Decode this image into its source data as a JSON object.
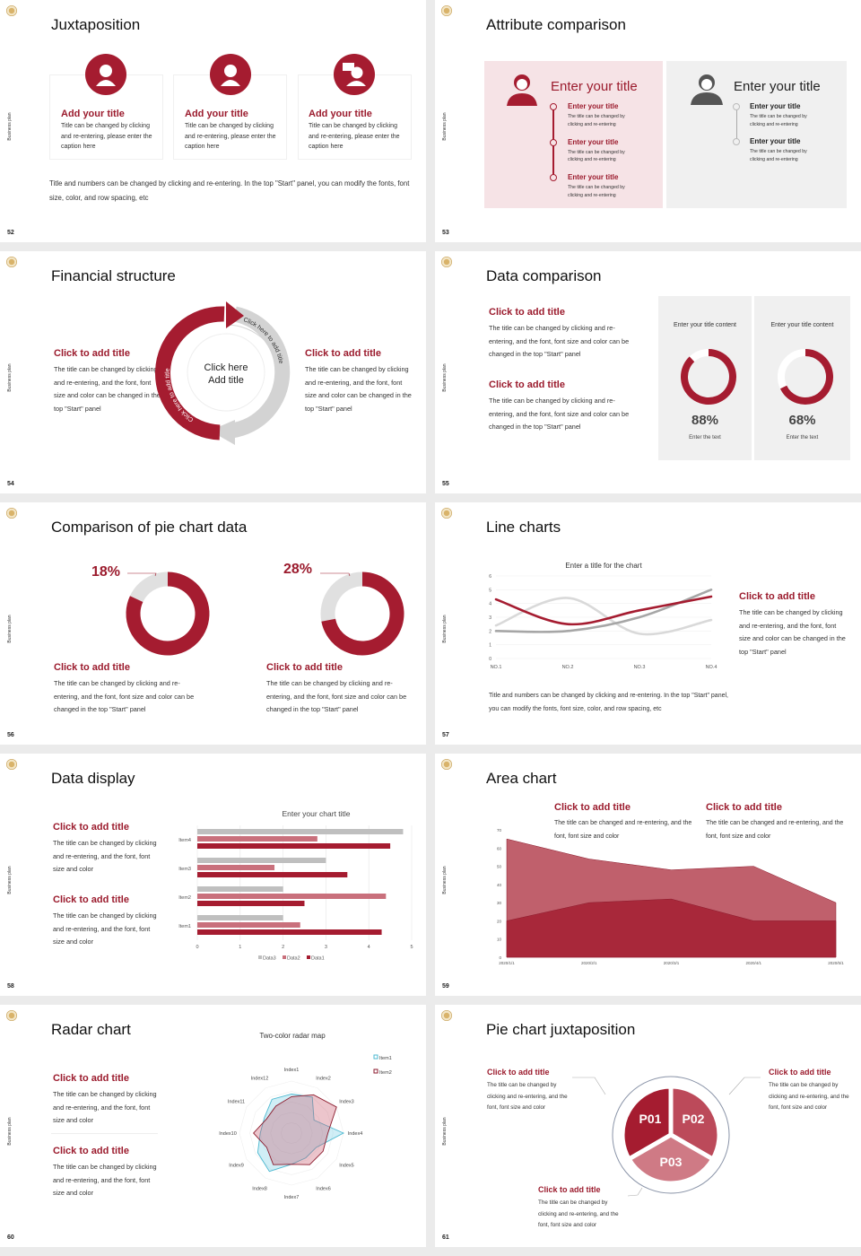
{
  "side_label": "Business plan",
  "colors": {
    "accent": "#a51c30",
    "mid": "#c9707c",
    "light": "#e0e0e0",
    "gray": "#bfbfbf"
  },
  "s52": {
    "page": "52",
    "title": "Juxtaposition",
    "cards": [
      {
        "icon": "headset-agent-icon",
        "title": "Add your title",
        "text": "Title can be changed by clicking and re-entering, please enter the caption here"
      },
      {
        "icon": "user-icon",
        "title": "Add your title",
        "text": "Title can be changed by clicking and re-entering, please enter the caption here"
      },
      {
        "icon": "user-chat-icon",
        "title": "Add your title",
        "text": "Title can be changed by clicking and re-entering, please enter the caption here"
      }
    ],
    "footer": "Title and numbers can be changed by clicking and re-entering. In the top \"Start\" panel, you can modify the fonts, font size, color, and row spacing, etc"
  },
  "s53": {
    "page": "53",
    "title": "Attribute comparison",
    "left": {
      "heading": "Enter your title",
      "items": [
        {
          "title": "Enter your title",
          "text": "The title can be changed by clicking and re-entering"
        },
        {
          "title": "Enter your title",
          "text": "The title can be changed by clicking and re-entering"
        },
        {
          "title": "Enter your title",
          "text": "The title can be changed by clicking and re-entering"
        }
      ]
    },
    "right": {
      "heading": "Enter your title",
      "items": [
        {
          "title": "Enter your title",
          "text": "The title can be changed by clicking and re-entering"
        },
        {
          "title": "Enter your title",
          "text": "The title can be changed by clicking and re-entering"
        }
      ]
    }
  },
  "s54": {
    "page": "54",
    "title": "Financial structure",
    "left": {
      "title": "Click to add title",
      "text": "The title can be changed by clicking and re-entering, and the font, font size and color can be changed in the top \"Start\" panel"
    },
    "right": {
      "title": "Click to add title",
      "text": "The title can be changed by clicking and re-entering, and the font, font size and color can be changed in the top \"Start\" panel"
    },
    "center": "Click here Add title",
    "arc_left": "Click here to add title",
    "arc_right": "Click here to add title"
  },
  "s55": {
    "page": "55",
    "title": "Data comparison",
    "blocks": [
      {
        "title": "Click to add title",
        "text": "The title can be changed by clicking and re-entering, and the font, font size and color can be changed in the top \"Start\" panel"
      },
      {
        "title": "Click to add title",
        "text": "The title can be changed by clicking and re-entering, and the font, font size and color can be changed in the top \"Start\" panel"
      }
    ],
    "cards": [
      {
        "heading": "Enter your title content",
        "value": 88,
        "label": "88%",
        "caption": "Enter the text"
      },
      {
        "heading": "Enter your title content",
        "value": 68,
        "label": "68%",
        "caption": "Enter the text"
      }
    ]
  },
  "s56": {
    "page": "56",
    "title": "Comparison of pie chart data",
    "pies": [
      {
        "value": 18,
        "label": "18%",
        "title": "Click to add title",
        "text": "The title can be changed by clicking and re-entering, and the font, font size and color can be changed in the top \"Start\" panel"
      },
      {
        "value": 28,
        "label": "28%",
        "title": "Click to add title",
        "text": "The title can be changed by clicking and re-entering, and the font, font size and color can be changed in the top \"Start\" panel"
      }
    ]
  },
  "s57": {
    "page": "57",
    "title": "Line charts",
    "side_title": "Click to add title",
    "side_text": "The title can be changed by clicking and re-entering, and the font, font size and color can be changed in the top \"Start\" panel",
    "footer": "Title and numbers can be changed by clicking and re-entering. In the top \"Start\" panel, you can modify the fonts, font size, color, and row spacing, etc"
  },
  "s58": {
    "page": "58",
    "title": "Data display",
    "blocks": [
      {
        "title": "Click to add title",
        "text": "The title can be changed by clicking and re-entering, and the font, font size and color"
      },
      {
        "title": "Click to add title",
        "text": "The title can be changed by clicking and re-entering, and the font, font size and color"
      }
    ]
  },
  "s59": {
    "page": "59",
    "title": "Area chart",
    "blocks": [
      {
        "title": "Click to add title",
        "text": "The title can be changed and re-entering, and the font, font size and color"
      },
      {
        "title": "Click to add title",
        "text": "The title can be changed and re-entering, and the font, font size and color"
      }
    ]
  },
  "s60": {
    "page": "60",
    "title": "Radar chart",
    "blocks": [
      {
        "title": "Click to add title",
        "text": "The title can be changed by clicking and re-entering, and the font, font size and color"
      },
      {
        "title": "Click to add title",
        "text": "The title can be changed by clicking and re-entering, and the font, font size and color"
      }
    ]
  },
  "s61": {
    "page": "61",
    "title": "Pie chart juxtaposition",
    "segments": [
      "P01",
      "P02",
      "P03"
    ],
    "blocks": [
      {
        "title": "Click to add title",
        "text": "The title can be changed by clicking and re-entering, and the font, font size and color"
      },
      {
        "title": "Click to add title",
        "text": "The title can be changed by clicking and re-entering, and the font, font size and color"
      },
      {
        "title": "Click to add title",
        "text": "The title can be changed by clicking and re-entering, and the font, font size and color"
      }
    ]
  },
  "chart_data": [
    {
      "type": "line",
      "title": "Enter a title for the chart",
      "categories": [
        "NO.1",
        "NO.2",
        "NO.3",
        "NO.4"
      ],
      "ylim": [
        0,
        6
      ],
      "yticks": [
        "0",
        "1",
        "2",
        "3",
        "4",
        "5",
        "6"
      ],
      "series": [
        {
          "color": "#a51c30",
          "values": [
            4.3,
            2.5,
            3.5,
            4.5
          ]
        },
        {
          "color": "#d9d9d9",
          "values": [
            2.4,
            4.4,
            1.8,
            2.8
          ]
        },
        {
          "color": "#a6a6a6",
          "values": [
            2,
            2,
            3,
            5
          ]
        }
      ]
    },
    {
      "type": "bar",
      "orientation": "horizontal",
      "title": "Enter your chart title",
      "categories": [
        "Item1",
        "Item2",
        "Item3",
        "Item4"
      ],
      "xlim": [
        0,
        5
      ],
      "xticks": [
        "0",
        "1",
        "2",
        "3",
        "4",
        "5"
      ],
      "legend": "bottom",
      "series": [
        {
          "name": "Data3",
          "color": "#bfbfbf",
          "values": [
            2,
            2,
            3,
            4.8
          ]
        },
        {
          "name": "Data2",
          "color": "#c9707c",
          "values": [
            2.4,
            4.4,
            1.8,
            2.8
          ]
        },
        {
          "name": "Data1",
          "color": "#a51c30",
          "values": [
            4.3,
            2.5,
            3.5,
            4.5
          ]
        }
      ]
    },
    {
      "type": "area",
      "categories": [
        "2020/1/1",
        "2020/2/1",
        "2020/3/1",
        "2020/4/1",
        "2020/5/1"
      ],
      "ylim": [
        0,
        70
      ],
      "yticks": [
        "0",
        "10",
        "20",
        "30",
        "40",
        "50",
        "60",
        "70"
      ],
      "series": [
        {
          "color": "#c0606c",
          "values": [
            65,
            54,
            48,
            50,
            30
          ]
        },
        {
          "color": "#a8283a",
          "values": [
            20,
            30,
            32,
            20,
            20
          ]
        }
      ]
    },
    {
      "type": "radar",
      "title": "Two-color radar map",
      "categories": [
        "Index1",
        "Index2",
        "Index3",
        "Index4",
        "Index5",
        "Index6",
        "Index7",
        "Index8",
        "Index9",
        "Index10",
        "Index11",
        "Index12"
      ],
      "legend": "top-right",
      "max": 10,
      "series": [
        {
          "name": "Item1",
          "color": "#4bb8d0",
          "values": [
            7.5,
            8,
            5,
            10,
            5.5,
            5.5,
            6,
            8.5,
            7.5,
            6,
            6,
            7.5
          ]
        },
        {
          "name": "Item2",
          "color": "#8b1a2c",
          "values": [
            7,
            8.5,
            10,
            7,
            7,
            7,
            6,
            7,
            5.5,
            7.3,
            5.5,
            6
          ]
        }
      ]
    }
  ]
}
